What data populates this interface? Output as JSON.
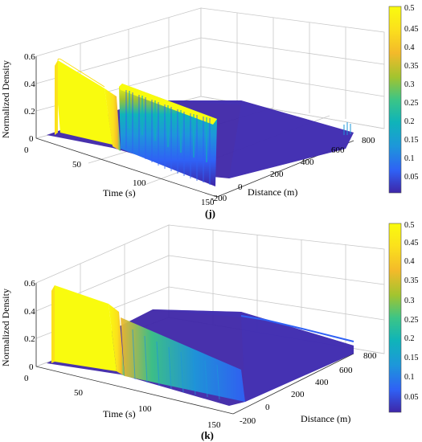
{
  "chart_data": [
    {
      "type": "surface",
      "panel_label": "(j)",
      "xlabel": "Time (s)",
      "ylabel": "Distance (m)",
      "zlabel": "Normalized Density",
      "time_ticks": [
        "0",
        "50",
        "100",
        "150"
      ],
      "distance_ticks": [
        "-200",
        "0",
        "200",
        "400",
        "600",
        "800"
      ],
      "density_ticks": [
        "0",
        "0.2",
        "0.4",
        "0.6"
      ],
      "colorbar_ticks": [
        "0.05",
        "0.1",
        "0.15",
        "0.2",
        "0.25",
        "0.3",
        "0.35",
        "0.4",
        "0.45",
        "0.5"
      ],
      "colormap": [
        "#3e26a8",
        "#2f61f5",
        "#1d97da",
        "#0fb4b9",
        "#3cc586",
        "#a2c42f",
        "#f3ba2a",
        "#fbe11c",
        "#f9fb0e"
      ],
      "xlim": [
        0,
        150
      ],
      "ylim": [
        -200,
        800
      ],
      "zlim": [
        0,
        0.6
      ],
      "clim": [
        0,
        0.5
      ],
      "grid": true,
      "description_values": {
        "jam_block": {
          "time_range": [
            0,
            30
          ],
          "distance_range": [
            -200,
            0
          ],
          "density": 0.55
        },
        "oscillation_peak_density": 0.5,
        "free_flow_density": 0.05
      }
    },
    {
      "type": "surface",
      "panel_label": "(k)",
      "xlabel": "Time (s)",
      "ylabel": "Distance (m)",
      "zlabel": "Normalized Density",
      "time_ticks": [
        "0",
        "50",
        "100",
        "150"
      ],
      "distance_ticks": [
        "-200",
        "0",
        "200",
        "400",
        "600",
        "800"
      ],
      "density_ticks": [
        "0",
        "0.2",
        "0.4",
        "0.6"
      ],
      "colorbar_ticks": [
        "0.05",
        "0.1",
        "0.15",
        "0.2",
        "0.25",
        "0.3",
        "0.35",
        "0.4",
        "0.45",
        "0.5"
      ],
      "colormap": [
        "#3e26a8",
        "#2f61f5",
        "#1d97da",
        "#0fb4b9",
        "#3cc586",
        "#a2c42f",
        "#f3ba2a",
        "#fbe11c",
        "#f9fb0e"
      ],
      "xlim": [
        0,
        150
      ],
      "ylim": [
        -200,
        800
      ],
      "zlim": [
        0,
        0.6
      ],
      "clim": [
        0,
        0.5
      ],
      "grid": true,
      "description_values": {
        "jam_block": {
          "time_range": [
            0,
            30
          ],
          "distance_range": [
            -200,
            0
          ],
          "density": 0.55
        },
        "decay_ripples_peak_density": 0.15,
        "free_flow_density": 0.05
      }
    }
  ]
}
